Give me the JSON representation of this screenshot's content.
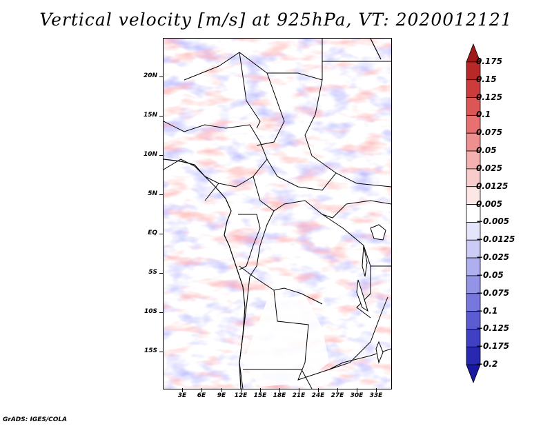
{
  "title": "Vertical velocity [m/s] at 925hPa, VT: 2020012121",
  "footer": "GrADS: IGES/COLA",
  "map": {
    "variable": "Vertical velocity",
    "units": "m/s",
    "level": "925hPa",
    "valid_time": "2020012121",
    "lat_labels": [
      "20N",
      "15N",
      "10N",
      "5N",
      "EQ",
      "5S",
      "10S",
      "15S"
    ],
    "lon_labels": [
      "3E",
      "6E",
      "9E",
      "12E",
      "15E",
      "18E",
      "21E",
      "24E",
      "27E",
      "30E",
      "33E"
    ]
  },
  "colorbar": {
    "labels": [
      "0.175",
      "0.15",
      "0.125",
      "0.1",
      "0.075",
      "0.05",
      "0.025",
      "0.0125",
      "0.005",
      "−0.005",
      "−0.0125",
      "−0.025",
      "−0.05",
      "−0.075",
      "−0.1",
      "−0.125",
      "−0.175",
      "−0.2"
    ],
    "colors": [
      "#a01818",
      "#b82828",
      "#cc3c3c",
      "#dc5656",
      "#e87070",
      "#ef9090",
      "#f5b0b0",
      "#f9cccc",
      "#fce6e6",
      "#ffffff",
      "#e4e4fb",
      "#cbcbf6",
      "#afafef",
      "#9494e6",
      "#7777dd",
      "#5c5cd2",
      "#4040c4",
      "#2828b0",
      "#1818a0"
    ]
  }
}
